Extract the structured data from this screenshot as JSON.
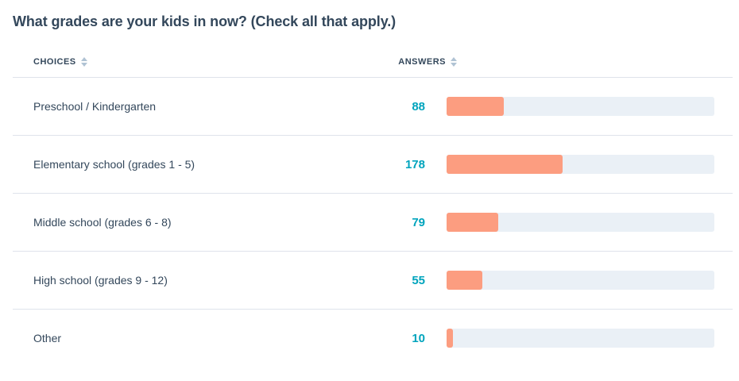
{
  "title": "What grades are your kids in now? (Check all that apply.)",
  "colors": {
    "title_text": "#33475b",
    "header_text": "#33475b",
    "row_text": "#33475b",
    "answer_count": "#00a4bd",
    "bar_fill": "#fc9d80",
    "bar_track": "#eaf0f6",
    "divider": "#dfe3eb",
    "sort_icon": "#b0c3d4"
  },
  "table": {
    "columns": [
      {
        "id": "choices",
        "label": "CHOICES",
        "sortable": true
      },
      {
        "id": "answers",
        "label": "ANSWERS",
        "sortable": true
      }
    ],
    "rows": [
      {
        "choice": "Preschool / Kindergarten",
        "answers": 88
      },
      {
        "choice": "Elementary school (grades 1 - 5)",
        "answers": 178
      },
      {
        "choice": "Middle school (grades 6 - 8)",
        "answers": 79
      },
      {
        "choice": "High school (grades 9 - 12)",
        "answers": 55
      },
      {
        "choice": "Other",
        "answers": 10
      }
    ]
  },
  "chart_data": {
    "type": "bar",
    "orientation": "horizontal",
    "title": "What grades are your kids in now? (Check all that apply.)",
    "categories": [
      "Preschool / Kindergarten",
      "Elementary school (grades 1 - 5)",
      "Middle school (grades 6 - 8)",
      "High school (grades 9 - 12)",
      "Other"
    ],
    "values": [
      88,
      178,
      79,
      55,
      10
    ],
    "xlabel": "",
    "ylabel": "",
    "xlim": [
      0,
      410
    ],
    "grid": false,
    "legend": false
  }
}
